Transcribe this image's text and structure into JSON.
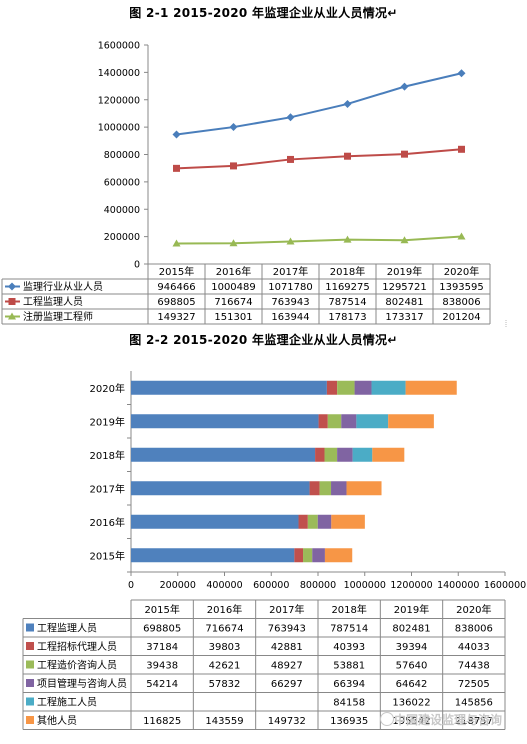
{
  "captions": {
    "fig1": "图 2-1   2015-2020 年监理企业从业人员情况↵",
    "fig2": "图 2-2   2015-2020 年监理企业从业人员情况↵"
  },
  "watermark": "中国建设监理与咨询",
  "chart_data": [
    {
      "type": "line",
      "categories": [
        "2015年",
        "2016年",
        "2017年",
        "2018年",
        "2019年",
        "2020年"
      ],
      "ylim": [
        0,
        1600000
      ],
      "yticks": [
        "0",
        "200000",
        "400000",
        "600000",
        "800000",
        "1000000",
        "1200000",
        "1400000",
        "1600000"
      ],
      "grid": false,
      "legend": "data-table-below",
      "series": [
        {
          "name": "监理行业从业人员",
          "values": [
            946466,
            1000489,
            1071780,
            1169275,
            1295721,
            1393595
          ],
          "color": "#4a7ebb",
          "marker": "diamond"
        },
        {
          "name": "工程监理人员",
          "values": [
            698805,
            716674,
            763943,
            787514,
            802481,
            838006
          ],
          "color": "#be4b48",
          "marker": "square"
        },
        {
          "name": "注册监理工程师",
          "values": [
            149327,
            151301,
            163944,
            178173,
            173317,
            201204
          ],
          "color": "#98b954",
          "marker": "triangle"
        }
      ]
    },
    {
      "type": "bar",
      "orientation": "horizontal",
      "stacked": true,
      "categories": [
        "2015年",
        "2016年",
        "2017年",
        "2018年",
        "2019年",
        "2020年"
      ],
      "xlim": [
        0,
        1600000
      ],
      "xticks": [
        "0",
        "200000",
        "400000",
        "600000",
        "800000",
        "1000000",
        "1200000",
        "1400000",
        "1600000"
      ],
      "grid": false,
      "legend": "data-table-below",
      "series": [
        {
          "name": "工程监理人员",
          "values": [
            698805,
            716674,
            763943,
            787514,
            802481,
            838006
          ],
          "labels": [
            "698805",
            "716674",
            "763943",
            "787514",
            "802481",
            "838006"
          ],
          "color": "#4f81bd"
        },
        {
          "name": "工程招标代理人员",
          "values": [
            37184,
            39803,
            42881,
            40393,
            39394,
            44033
          ],
          "labels": [
            "37184",
            "39803",
            "42881",
            "40393",
            "39394",
            "44033"
          ],
          "color": "#c0504d"
        },
        {
          "name": "工程造价咨询人员",
          "values": [
            39438,
            42621,
            48927,
            53881,
            57640,
            74438
          ],
          "labels": [
            "39438",
            "42621",
            "48927",
            "53881",
            "57640",
            "74438"
          ],
          "color": "#9bbb59"
        },
        {
          "name": "项目管理与咨询人员",
          "values": [
            54214,
            57832,
            66297,
            66394,
            64642,
            72505
          ],
          "labels": [
            "54214",
            "57832",
            "66297",
            "66394",
            "64642",
            "72505"
          ],
          "color": "#8064a2"
        },
        {
          "name": "工程施工人员",
          "values": [
            0,
            0,
            0,
            84158,
            136022,
            145856
          ],
          "labels": [
            "",
            "",
            "",
            "84158",
            "136022",
            "145856"
          ],
          "color": "#4bacc6"
        },
        {
          "name": "其他人员",
          "values": [
            116825,
            143559,
            149732,
            136935,
            195542,
            218757
          ],
          "labels": [
            "116825",
            "143559",
            "149732",
            "136935",
            "195542",
            "218757"
          ],
          "color": "#f79646"
        }
      ]
    }
  ]
}
